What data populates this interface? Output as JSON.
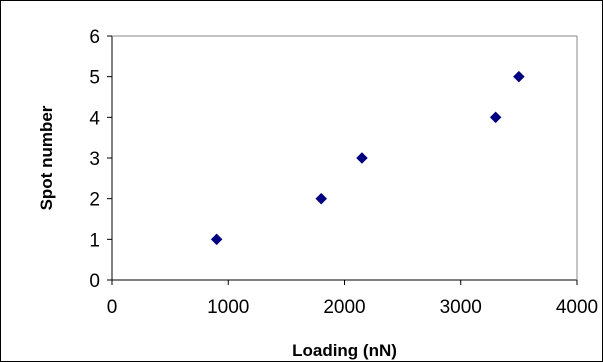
{
  "chart_data": {
    "type": "scatter",
    "title": "",
    "xlabel": "Loading (nN)",
    "ylabel": "Spot number",
    "xlim": [
      0,
      4000
    ],
    "ylim": [
      0,
      6
    ],
    "xticks": [
      0,
      1000,
      2000,
      3000,
      4000
    ],
    "yticks": [
      0,
      1,
      2,
      3,
      4,
      5,
      6
    ],
    "xtick_labels": [
      "0",
      "1000",
      "2000",
      "3000",
      "4000"
    ],
    "ytick_labels": [
      "0",
      "1",
      "2",
      "3",
      "4",
      "5",
      "6"
    ],
    "grid": false,
    "legend": "none",
    "marker": "diamond",
    "marker_color": "#000080",
    "series": [
      {
        "points": [
          {
            "x": 900,
            "y": 1
          },
          {
            "x": 1800,
            "y": 2
          },
          {
            "x": 2150,
            "y": 3
          },
          {
            "x": 3300,
            "y": 4
          },
          {
            "x": 3500,
            "y": 5
          }
        ]
      }
    ]
  }
}
